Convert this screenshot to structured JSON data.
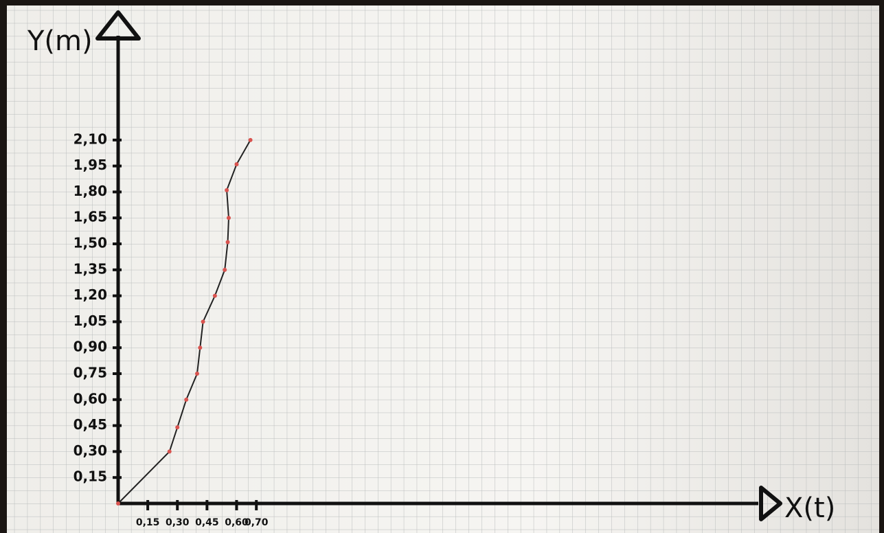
{
  "chart_data": {
    "type": "line",
    "x_label": "X(t)",
    "y_label": "Y(m)",
    "series": [
      {
        "color": "#222222",
        "marker_color": "#d9534f",
        "x": [
          0,
          0.26,
          0.3,
          0.345,
          0.4,
          0.415,
          0.43,
          0.49,
          0.54,
          0.555,
          0.56,
          0.55,
          0.6,
          0.67
        ],
        "values": [
          0,
          0.3,
          0.44,
          0.6,
          0.75,
          0.9,
          1.05,
          1.2,
          1.35,
          1.51,
          1.65,
          1.81,
          1.96,
          2.1
        ]
      }
    ],
    "xlim": [
      0,
      3.27
    ],
    "ylim": [
      0,
      2.79
    ],
    "xticks": [
      {
        "value": 0.15,
        "label": "0,15"
      },
      {
        "value": 0.3,
        "label": "0,30"
      },
      {
        "value": 0.45,
        "label": "0,45"
      },
      {
        "value": 0.6,
        "label": "0,60"
      },
      {
        "value": 0.7,
        "label": "0,70"
      }
    ],
    "yticks": [
      {
        "value": 0.15,
        "label": "0,15"
      },
      {
        "value": 0.3,
        "label": "0,30"
      },
      {
        "value": 0.45,
        "label": "0,45"
      },
      {
        "value": 0.6,
        "label": "0,60"
      },
      {
        "value": 0.75,
        "label": "0,75"
      },
      {
        "value": 0.9,
        "label": "0,90"
      },
      {
        "value": 1.05,
        "label": "1,05"
      },
      {
        "value": 1.2,
        "label": "1,20"
      },
      {
        "value": 1.35,
        "label": "1,35"
      },
      {
        "value": 1.5,
        "label": "1,50"
      },
      {
        "value": 1.65,
        "label": "1,65"
      },
      {
        "value": 1.8,
        "label": "1,80"
      },
      {
        "value": 1.95,
        "label": "1,95"
      },
      {
        "value": 2.1,
        "label": "2,10"
      }
    ],
    "grid": true
  }
}
